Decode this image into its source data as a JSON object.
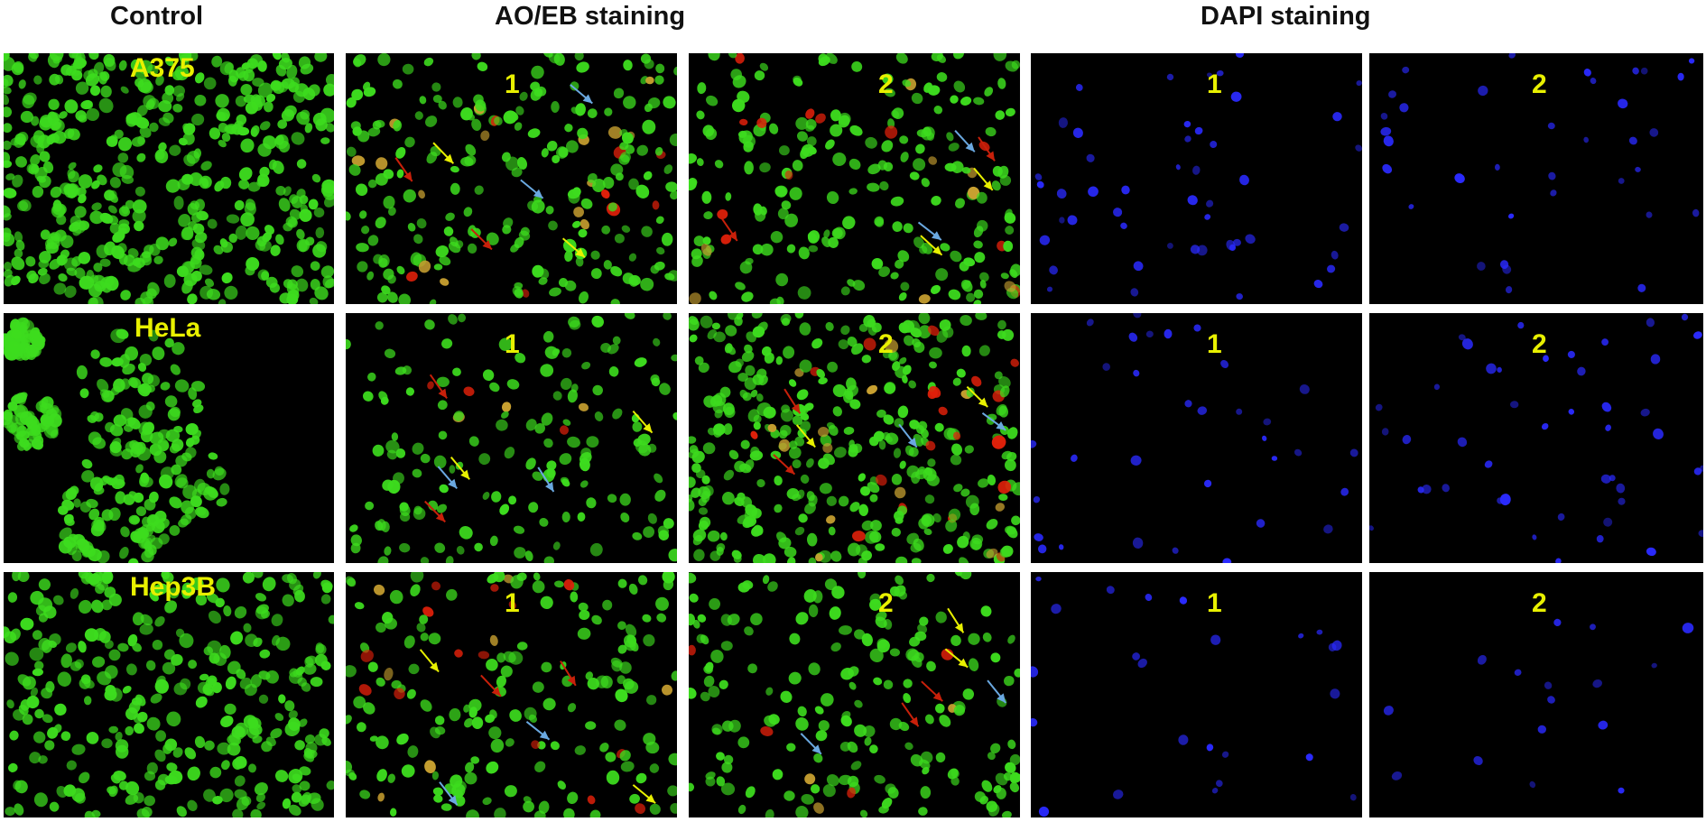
{
  "headers": {
    "control": "Control",
    "aoeb": "AO/EB staining",
    "dapi": "DAPI staining"
  },
  "rows": [
    {
      "cell_line": "A375",
      "panels": [
        {
          "type": "control",
          "label": "",
          "seed": 11,
          "density": 0.92
        },
        {
          "type": "aoeb",
          "label": "1",
          "seed": 23,
          "density": 0.45
        },
        {
          "type": "aoeb",
          "label": "2",
          "seed": 37,
          "density": 0.42
        },
        {
          "type": "dapi",
          "label": "1",
          "seed": 41,
          "density": 0.3
        },
        {
          "type": "dapi",
          "label": "2",
          "seed": 53,
          "density": 0.22
        }
      ]
    },
    {
      "cell_line": "HeLa",
      "panels": [
        {
          "type": "control",
          "label": "",
          "seed": 61,
          "density": 0.6
        },
        {
          "type": "aoeb",
          "label": "1",
          "seed": 71,
          "density": 0.3
        },
        {
          "type": "aoeb",
          "label": "2",
          "seed": 83,
          "density": 0.7
        },
        {
          "type": "dapi",
          "label": "1",
          "seed": 97,
          "density": 0.2
        },
        {
          "type": "dapi",
          "label": "2",
          "seed": 101,
          "density": 0.28
        }
      ]
    },
    {
      "cell_line": "Hep3B",
      "panels": [
        {
          "type": "control",
          "label": "",
          "seed": 113,
          "density": 0.6
        },
        {
          "type": "aoeb",
          "label": "1",
          "seed": 127,
          "density": 0.35
        },
        {
          "type": "aoeb",
          "label": "2",
          "seed": 139,
          "density": 0.35
        },
        {
          "type": "dapi",
          "label": "1",
          "seed": 149,
          "density": 0.15
        },
        {
          "type": "dapi",
          "label": "2",
          "seed": 157,
          "density": 0.1
        }
      ]
    }
  ],
  "colors": {
    "live_green": "#3ddc1e",
    "apoptotic_yellow": "#e8f000",
    "necrotic_red": "#e0200a",
    "dapi_blue": "#2a2aff",
    "arrow_blue": "#6aa8e0",
    "arrow_yellow": "#e8f000",
    "arrow_red": "#c8200a"
  }
}
